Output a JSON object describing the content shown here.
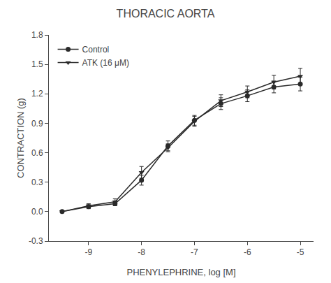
{
  "chart_data": {
    "type": "line",
    "title": "THORACIC AORTA",
    "xlabel": "PHENYLEPHRINE, log [M]",
    "ylabel": "CONTRACTION (g)",
    "x": [
      -9.5,
      -9,
      -8.5,
      -8,
      -7.5,
      -7,
      -6.5,
      -6,
      -5.5,
      -5
    ],
    "series": [
      {
        "name": "Control",
        "color": "#2a2a2a",
        "marker": "circle",
        "line_style": "solid",
        "values": [
          0.0,
          0.05,
          0.08,
          0.32,
          0.67,
          0.93,
          1.1,
          1.18,
          1.27,
          1.3
        ],
        "errors": [
          0.01,
          0.02,
          0.02,
          0.05,
          0.05,
          0.05,
          0.06,
          0.06,
          0.06,
          0.07
        ]
      },
      {
        "name": "ATK (16 μM)",
        "color": "#2a2a2a",
        "marker": "triangle-down",
        "line_style": "solid",
        "values": [
          0.0,
          0.06,
          0.1,
          0.4,
          0.65,
          0.92,
          1.13,
          1.22,
          1.32,
          1.38
        ],
        "errors": [
          0.01,
          0.02,
          0.03,
          0.06,
          0.04,
          0.05,
          0.06,
          0.06,
          0.07,
          0.08
        ]
      }
    ],
    "xlim": [
      -9.75,
      -4.75
    ],
    "xticks": [
      -9,
      -8,
      -7,
      -6,
      -5
    ],
    "ylim": [
      -0.3,
      1.8
    ],
    "yticks": [
      -0.3,
      {
        "value": 0.0,
        "label": "0.0"
      },
      0.3,
      0.6,
      0.9,
      1.2,
      1.5,
      1.8
    ],
    "grid": false,
    "legend": "upper left"
  }
}
